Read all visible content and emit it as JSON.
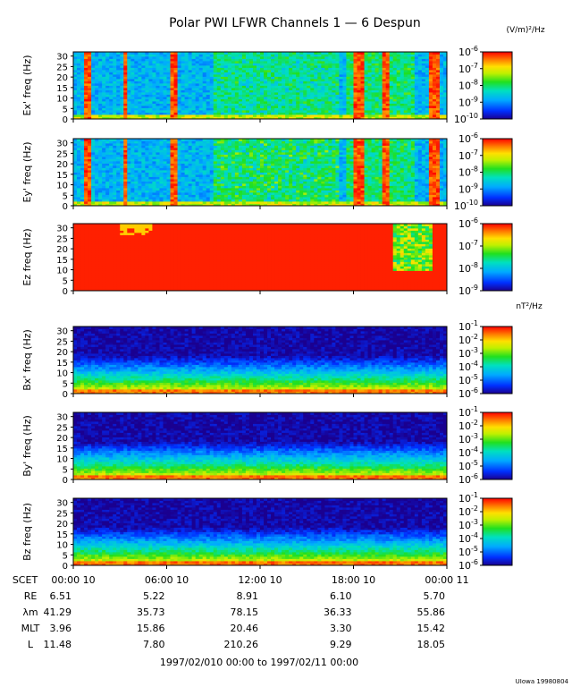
{
  "chart_data": {
    "type": "heatmap",
    "title": "Polar PWI LFWR Channels 1 — 6 Despun",
    "e_units": "(V/m)²/Hz",
    "b_units": "nT²/Hz",
    "x_range_hours": [
      0,
      24
    ],
    "x_tick_hours": [
      0,
      6,
      12,
      18,
      24
    ],
    "y_range_hz": [
      0,
      32
    ],
    "y_ticks": [
      "0",
      "5",
      "10",
      "15",
      "20",
      "25",
      "30"
    ],
    "panels": [
      {
        "ylabel": "Ex' freq (Hz)",
        "kind": "e",
        "cbar": [
          "10^-6",
          "10^-7",
          "10^-8",
          "10^-9",
          "10^-10"
        ],
        "log_range": [
          -10,
          -6
        ]
      },
      {
        "ylabel": "Ey' freq (Hz)",
        "kind": "e",
        "cbar": [
          "10^-6",
          "10^-7",
          "10^-8",
          "10^-9",
          "10^-10"
        ],
        "log_range": [
          -10,
          -6
        ]
      },
      {
        "ylabel": "Ez freq (Hz)",
        "kind": "ez",
        "cbar": [
          "10^-6",
          "10^-7",
          "10^-8",
          "10^-9"
        ],
        "log_range": [
          -9,
          -6
        ]
      },
      {
        "ylabel": "Bx' freq (Hz)",
        "kind": "b",
        "cbar": [
          "10^-1",
          "10^-2",
          "10^-3",
          "10^-4",
          "10^-5",
          "10^-6"
        ],
        "log_range": [
          -6,
          -1
        ]
      },
      {
        "ylabel": "By' freq (Hz)",
        "kind": "b",
        "cbar": [
          "10^-1",
          "10^-2",
          "10^-3",
          "10^-4",
          "10^-5",
          "10^-6"
        ],
        "log_range": [
          -6,
          -1
        ]
      },
      {
        "ylabel": "Bz freq (Hz)",
        "kind": "b",
        "cbar": [
          "10^-1",
          "10^-2",
          "10^-3",
          "10^-4",
          "10^-5",
          "10^-6"
        ],
        "log_range": [
          -6,
          -1
        ]
      }
    ],
    "orbit_table": {
      "labels": [
        "SCET",
        "RE",
        "λm",
        "MLT",
        "L"
      ],
      "scet": [
        "00:00 10",
        "06:00 10",
        "12:00 10",
        "18:00 10",
        "00:00 11"
      ],
      "RE": [
        "6.51",
        "5.22",
        "8.91",
        "6.10",
        "5.70"
      ],
      "lambda_m": [
        "41.29",
        "35.73",
        "78.15",
        "36.33",
        "55.86"
      ],
      "MLT": [
        "3.96",
        "15.86",
        "20.46",
        "3.30",
        "15.42"
      ],
      "L": [
        "11.48",
        "7.80",
        "210.26",
        "9.29",
        "18.05"
      ]
    },
    "date_range": "1997/02/010 00:00 to 1997/02/11 00:00",
    "credit": "UIowa 19980804"
  }
}
